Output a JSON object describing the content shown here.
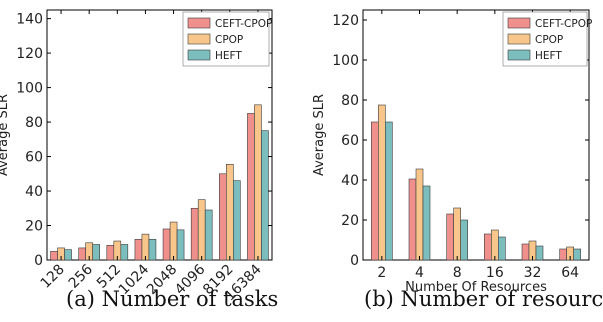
{
  "chart_data": [
    {
      "type": "bar",
      "caption": "(a) Number of tasks",
      "ylabel": "Average SLR",
      "xlabel": "",
      "categories": [
        "128",
        "256",
        "512",
        "1024",
        "2048",
        "4096",
        "8192",
        "16384"
      ],
      "ylim": [
        0,
        145
      ],
      "yticks": [
        0,
        20,
        40,
        60,
        80,
        100,
        120,
        140
      ],
      "grid": false,
      "legend_position": "top-right",
      "x_tick_rotation": -45,
      "series": [
        {
          "name": "CEFT-CPOP",
          "color": "#f0908c",
          "values": [
            5.0,
            7.0,
            8.5,
            12.0,
            18.0,
            30.0,
            50.0,
            85.0
          ]
        },
        {
          "name": "CPOP",
          "color": "#f8c58a",
          "values": [
            7.0,
            10.0,
            11.0,
            15.0,
            22.0,
            35.0,
            55.5,
            90.0
          ]
        },
        {
          "name": "HEFT",
          "color": "#7cbdbd",
          "values": [
            6.0,
            9.0,
            9.0,
            12.0,
            17.5,
            29.0,
            46.0,
            75.0
          ]
        }
      ]
    },
    {
      "type": "bar",
      "caption": "(b) Number of resources",
      "ylabel": "Average SLR",
      "xlabel": "Number Of Resources",
      "categories": [
        "2",
        "4",
        "8",
        "16",
        "32",
        "64"
      ],
      "ylim": [
        0,
        125
      ],
      "yticks": [
        0,
        20,
        40,
        60,
        80,
        100,
        120
      ],
      "grid": false,
      "legend_position": "top-right",
      "x_tick_rotation": 0,
      "series": [
        {
          "name": "CEFT-CPOP",
          "color": "#f0908c",
          "values": [
            69.0,
            40.5,
            23.0,
            13.0,
            8.0,
            5.5
          ]
        },
        {
          "name": "CPOP",
          "color": "#f8c58a",
          "values": [
            77.5,
            45.5,
            26.0,
            15.0,
            9.5,
            6.5
          ]
        },
        {
          "name": "HEFT",
          "color": "#7cbdbd",
          "values": [
            69.0,
            37.0,
            20.0,
            11.5,
            7.0,
            5.5
          ]
        }
      ]
    }
  ]
}
